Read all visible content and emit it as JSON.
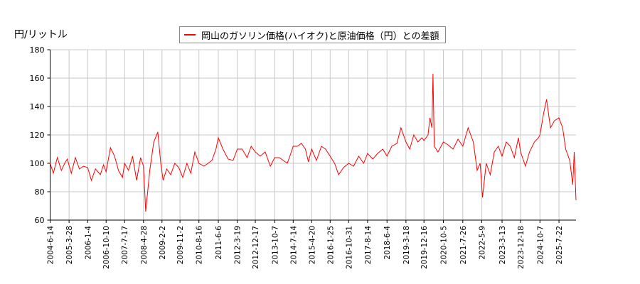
{
  "chart_data": {
    "type": "line",
    "ylabel": "円/リットル",
    "ylim": [
      60,
      180
    ],
    "xlim": [
      "2004-06-14",
      "2026-04-06"
    ],
    "yticks": [
      60,
      80,
      100,
      120,
      140,
      160,
      180
    ],
    "xticks": [
      "2004-6-14",
      "2005-3-28",
      "2006-1-4",
      "2006-10-10",
      "2007-7-17",
      "2008-4-28",
      "2009-2-2",
      "2009-11-2",
      "2010-8-16",
      "2011-6-6",
      "2012-3-19",
      "2012-12-17",
      "2013-10-7",
      "2014-7-14",
      "2015-4-20",
      "2016-1-25",
      "2016-10-31",
      "2017-8-14",
      "2018-6-4",
      "2019-3-18",
      "2019-12-16",
      "2020-10-5",
      "2021-7-26",
      "2022-5-9",
      "2023-3-13",
      "2023-12-18",
      "2024-10-7",
      "2025-7-22"
    ],
    "grid": true,
    "legend_placement": "top-center",
    "series": [
      {
        "name": "岡山のガソリン価格(ハイオク)と原油価格（円）との差額",
        "color": "#ff0000",
        "points": [
          [
            "2004-06-14",
            100
          ],
          [
            "2004-08-01",
            93
          ],
          [
            "2004-10-01",
            104
          ],
          [
            "2004-12-01",
            95
          ],
          [
            "2005-01-20",
            100
          ],
          [
            "2005-03-01",
            103
          ],
          [
            "2005-05-01",
            93
          ],
          [
            "2005-07-01",
            104
          ],
          [
            "2005-09-01",
            96
          ],
          [
            "2005-11-01",
            98
          ],
          [
            "2006-01-04",
            97
          ],
          [
            "2006-03-01",
            88
          ],
          [
            "2006-05-01",
            96
          ],
          [
            "2006-07-15",
            92
          ],
          [
            "2006-09-01",
            99
          ],
          [
            "2006-10-10",
            94
          ],
          [
            "2006-12-15",
            111
          ],
          [
            "2007-02-15",
            105
          ],
          [
            "2007-04-15",
            95
          ],
          [
            "2007-06-15",
            90
          ],
          [
            "2007-07-17",
            100
          ],
          [
            "2007-09-15",
            95
          ],
          [
            "2007-11-15",
            105
          ],
          [
            "2008-01-15",
            88
          ],
          [
            "2008-03-15",
            104
          ],
          [
            "2008-04-28",
            98
          ],
          [
            "2008-06-01",
            66
          ],
          [
            "2008-08-01",
            95
          ],
          [
            "2008-10-01",
            115
          ],
          [
            "2008-12-01",
            122
          ],
          [
            "2009-01-15",
            100
          ],
          [
            "2009-02-20",
            88
          ],
          [
            "2009-04-15",
            96
          ],
          [
            "2009-06-15",
            92
          ],
          [
            "2009-08-15",
            100
          ],
          [
            "2009-10-15",
            97
          ],
          [
            "2009-12-15",
            90
          ],
          [
            "2010-02-15",
            100
          ],
          [
            "2010-04-15",
            93
          ],
          [
            "2010-06-15",
            108
          ],
          [
            "2010-08-16",
            100
          ],
          [
            "2010-11-01",
            98
          ],
          [
            "2011-01-01",
            100
          ],
          [
            "2011-03-01",
            102
          ],
          [
            "2011-05-01",
            110
          ],
          [
            "2011-06-06",
            118
          ],
          [
            "2011-08-15",
            110
          ],
          [
            "2011-11-01",
            103
          ],
          [
            "2012-01-15",
            102
          ],
          [
            "2012-03-19",
            110
          ],
          [
            "2012-06-01",
            110
          ],
          [
            "2012-08-15",
            104
          ],
          [
            "2012-10-15",
            112
          ],
          [
            "2012-12-17",
            108
          ],
          [
            "2013-03-01",
            105
          ],
          [
            "2013-05-15",
            108
          ],
          [
            "2013-08-01",
            98
          ],
          [
            "2013-10-07",
            104
          ],
          [
            "2013-12-15",
            104
          ],
          [
            "2014-02-15",
            102
          ],
          [
            "2014-04-15",
            100
          ],
          [
            "2014-06-01",
            106
          ],
          [
            "2014-07-14",
            112
          ],
          [
            "2014-09-15",
            112
          ],
          [
            "2014-11-15",
            114
          ],
          [
            "2015-01-15",
            110
          ],
          [
            "2015-03-01",
            101
          ],
          [
            "2015-04-20",
            110
          ],
          [
            "2015-07-01",
            102
          ],
          [
            "2015-09-15",
            112
          ],
          [
            "2015-11-15",
            110
          ],
          [
            "2016-01-25",
            105
          ],
          [
            "2016-04-01",
            100
          ],
          [
            "2016-06-01",
            92
          ],
          [
            "2016-08-15",
            97
          ],
          [
            "2016-10-31",
            100
          ],
          [
            "2017-01-15",
            98
          ],
          [
            "2017-04-01",
            105
          ],
          [
            "2017-06-15",
            100
          ],
          [
            "2017-08-14",
            107
          ],
          [
            "2017-11-01",
            103
          ],
          [
            "2018-01-15",
            107
          ],
          [
            "2018-04-01",
            110
          ],
          [
            "2018-06-04",
            105
          ],
          [
            "2018-08-15",
            112
          ],
          [
            "2018-11-01",
            114
          ],
          [
            "2019-01-01",
            125
          ],
          [
            "2019-03-18",
            115
          ],
          [
            "2019-05-15",
            110
          ],
          [
            "2019-07-15",
            120
          ],
          [
            "2019-09-15",
            115
          ],
          [
            "2019-11-15",
            118
          ],
          [
            "2019-12-16",
            116
          ],
          [
            "2020-02-15",
            120
          ],
          [
            "2020-03-15",
            132
          ],
          [
            "2020-04-15",
            125
          ],
          [
            "2020-05-01",
            163
          ],
          [
            "2020-05-20",
            112
          ],
          [
            "2020-07-15",
            108
          ],
          [
            "2020-10-05",
            115
          ],
          [
            "2020-12-15",
            113
          ],
          [
            "2021-03-01",
            110
          ],
          [
            "2021-05-15",
            117
          ],
          [
            "2021-07-26",
            112
          ],
          [
            "2021-10-15",
            125
          ],
          [
            "2022-01-01",
            115
          ],
          [
            "2022-03-01",
            95
          ],
          [
            "2022-04-15",
            100
          ],
          [
            "2022-05-20",
            76
          ],
          [
            "2022-07-15",
            100
          ],
          [
            "2022-09-15",
            92
          ],
          [
            "2022-11-15",
            108
          ],
          [
            "2023-01-15",
            112
          ],
          [
            "2023-03-13",
            105
          ],
          [
            "2023-05-15",
            115
          ],
          [
            "2023-07-15",
            112
          ],
          [
            "2023-09-15",
            104
          ],
          [
            "2023-11-15",
            118
          ],
          [
            "2023-12-18",
            108
          ],
          [
            "2024-03-01",
            98
          ],
          [
            "2024-05-01",
            108
          ],
          [
            "2024-07-15",
            115
          ],
          [
            "2024-09-15",
            118
          ],
          [
            "2024-10-07",
            120
          ],
          [
            "2024-12-01",
            135
          ],
          [
            "2025-01-15",
            145
          ],
          [
            "2025-03-15",
            125
          ],
          [
            "2025-05-15",
            130
          ],
          [
            "2025-07-22",
            132
          ],
          [
            "2025-09-15",
            125
          ],
          [
            "2025-11-01",
            110
          ],
          [
            "2026-01-01",
            102
          ],
          [
            "2026-02-15",
            85
          ],
          [
            "2026-03-10",
            108
          ],
          [
            "2026-04-06",
            74
          ]
        ]
      }
    ]
  }
}
